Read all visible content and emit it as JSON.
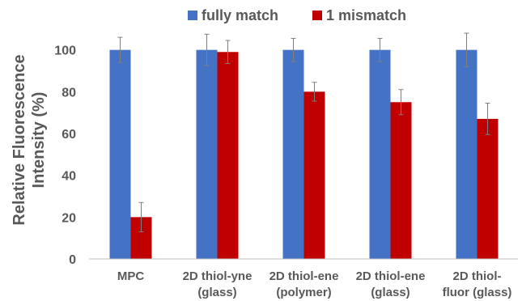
{
  "chart_data": {
    "type": "bar",
    "categories": [
      [
        "MPC"
      ],
      [
        "2D thiol-yne",
        "(glass)"
      ],
      [
        "2D thiol-ene",
        "(polymer)"
      ],
      [
        "2D thiol-ene",
        "(glass)"
      ],
      [
        "2D thiol-",
        "fluor (glass)"
      ]
    ],
    "series": [
      {
        "name": "fully match",
        "color": "#4472C4",
        "values": [
          100,
          100,
          100,
          100,
          100
        ],
        "errors": [
          6,
          7.5,
          5.5,
          5.5,
          8
        ]
      },
      {
        "name": "1 mismatch",
        "color": "#C00000",
        "values": [
          20,
          99,
          80,
          75,
          67
        ],
        "errors": [
          7,
          5.5,
          4.5,
          6,
          7.5
        ]
      }
    ],
    "ylabel": [
      "Relative Fluorescence",
      "Intensity (%)"
    ],
    "ylim": [
      0,
      120
    ],
    "yticks": [
      0,
      20,
      40,
      60,
      80,
      100
    ],
    "legend_position": "top",
    "grid": false
  }
}
